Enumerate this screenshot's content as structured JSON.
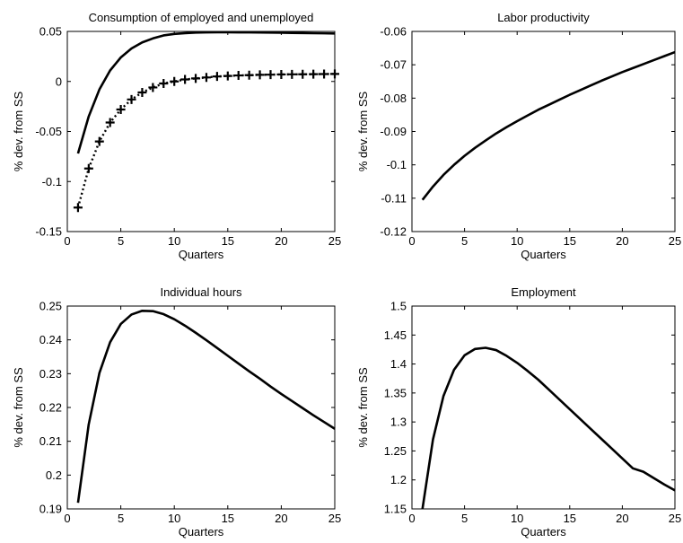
{
  "chart_data": [
    {
      "type": "line",
      "title": "Consumption of employed and unemployed",
      "xlabel": "Quarters",
      "ylabel": "% dev. from SS",
      "xlim": [
        0,
        25
      ],
      "ylim": [
        -0.15,
        0.05
      ],
      "xticks": [
        "0",
        "5",
        "10",
        "15",
        "20",
        "25"
      ],
      "yticks": [
        "-0.15",
        "-0.1",
        "-0.05",
        "0",
        "0.05"
      ],
      "grid": false,
      "series": [
        {
          "style": "solid",
          "x": [
            1,
            2,
            3,
            4,
            5,
            6,
            7,
            8,
            9,
            10,
            11,
            12,
            13,
            14,
            15,
            16,
            17,
            18,
            19,
            20,
            21,
            22,
            23,
            24,
            25
          ],
          "values": [
            -0.072,
            -0.035,
            -0.008,
            0.011,
            0.024,
            0.033,
            0.039,
            0.043,
            0.046,
            0.0475,
            0.0483,
            0.0488,
            0.049,
            0.0491,
            0.0491,
            0.049,
            0.049,
            0.0489,
            0.0488,
            0.0487,
            0.0485,
            0.0484,
            0.0482,
            0.0481,
            0.0479
          ]
        },
        {
          "style": "dotted-plus",
          "x": [
            1,
            2,
            3,
            4,
            5,
            6,
            7,
            8,
            9,
            10,
            11,
            12,
            13,
            14,
            15,
            16,
            17,
            18,
            19,
            20,
            21,
            22,
            23,
            24,
            25
          ],
          "values": [
            -0.126,
            -0.087,
            -0.06,
            -0.041,
            -0.028,
            -0.018,
            -0.011,
            -0.006,
            -0.002,
            0.0,
            0.002,
            0.003,
            0.004,
            0.005,
            0.0055,
            0.006,
            0.0063,
            0.0066,
            0.0068,
            0.007,
            0.0071,
            0.0072,
            0.0073,
            0.0074,
            0.0075
          ]
        }
      ]
    },
    {
      "type": "line",
      "title": "Labor productivity",
      "xlabel": "Quarters",
      "ylabel": "% dev. from SS",
      "xlim": [
        0,
        25
      ],
      "ylim": [
        -0.12,
        -0.06
      ],
      "xticks": [
        "0",
        "5",
        "10",
        "15",
        "20",
        "25"
      ],
      "yticks": [
        "-0.12",
        "-0.11",
        "-0.1",
        "-0.09",
        "-0.08",
        "-0.07",
        "-0.06"
      ],
      "grid": false,
      "series": [
        {
          "style": "solid",
          "x": [
            1,
            2,
            3,
            4,
            5,
            6,
            7,
            8,
            9,
            10,
            11,
            12,
            13,
            14,
            15,
            16,
            17,
            18,
            19,
            20,
            21,
            22,
            23,
            24,
            25
          ],
          "values": [
            -0.1105,
            -0.1065,
            -0.103,
            -0.1,
            -0.0973,
            -0.0949,
            -0.0927,
            -0.0906,
            -0.0887,
            -0.0869,
            -0.0852,
            -0.0835,
            -0.082,
            -0.0805,
            -0.079,
            -0.0776,
            -0.0762,
            -0.0748,
            -0.0735,
            -0.0722,
            -0.071,
            -0.0698,
            -0.0686,
            -0.0674,
            -0.0662
          ]
        }
      ]
    },
    {
      "type": "line",
      "title": "Individual hours",
      "xlabel": "Quarters",
      "ylabel": "% dev. from SS",
      "xlim": [
        0,
        25
      ],
      "ylim": [
        0.19,
        0.25
      ],
      "xticks": [
        "0",
        "5",
        "10",
        "15",
        "20",
        "25"
      ],
      "yticks": [
        "0.19",
        "0.2",
        "0.21",
        "0.22",
        "0.23",
        "0.24",
        "0.25"
      ],
      "grid": false,
      "series": [
        {
          "style": "solid",
          "x": [
            1,
            2,
            3,
            4,
            5,
            6,
            7,
            8,
            9,
            10,
            11,
            12,
            13,
            14,
            15,
            16,
            17,
            18,
            19,
            20,
            21,
            22,
            23,
            24,
            25
          ],
          "values": [
            0.1918,
            0.215,
            0.2302,
            0.2393,
            0.2447,
            0.2475,
            0.2486,
            0.2485,
            0.2476,
            0.2461,
            0.2442,
            0.2421,
            0.2399,
            0.2376,
            0.2353,
            0.233,
            0.2307,
            0.2285,
            0.2262,
            0.224,
            0.2219,
            0.2198,
            0.2177,
            0.2157,
            0.2137
          ]
        }
      ]
    },
    {
      "type": "line",
      "title": "Employment",
      "xlabel": "Quarters",
      "ylabel": "% dev. from SS",
      "xlim": [
        0,
        25
      ],
      "ylim": [
        1.15,
        1.5
      ],
      "xticks": [
        "0",
        "5",
        "10",
        "15",
        "20",
        "25"
      ],
      "yticks": [
        "1.15",
        "1.2",
        "1.25",
        "1.3",
        "1.35",
        "1.4",
        "1.45",
        "1.5"
      ],
      "grid": false,
      "series": [
        {
          "style": "solid",
          "x": [
            1,
            2,
            3,
            4,
            5,
            6,
            7,
            8,
            9,
            10,
            11,
            12,
            13,
            14,
            15,
            16,
            17,
            18,
            19,
            20,
            21,
            22,
            23,
            24,
            25
          ],
          "values": [
            1.15,
            1.27,
            1.345,
            1.39,
            1.415,
            1.426,
            1.428,
            1.424,
            1.414,
            1.402,
            1.388,
            1.373,
            1.356,
            1.339,
            1.322,
            1.305,
            1.288,
            1.271,
            1.254,
            1.237,
            1.22,
            1.214,
            1.203,
            1.192,
            1.182
          ]
        }
      ]
    }
  ]
}
